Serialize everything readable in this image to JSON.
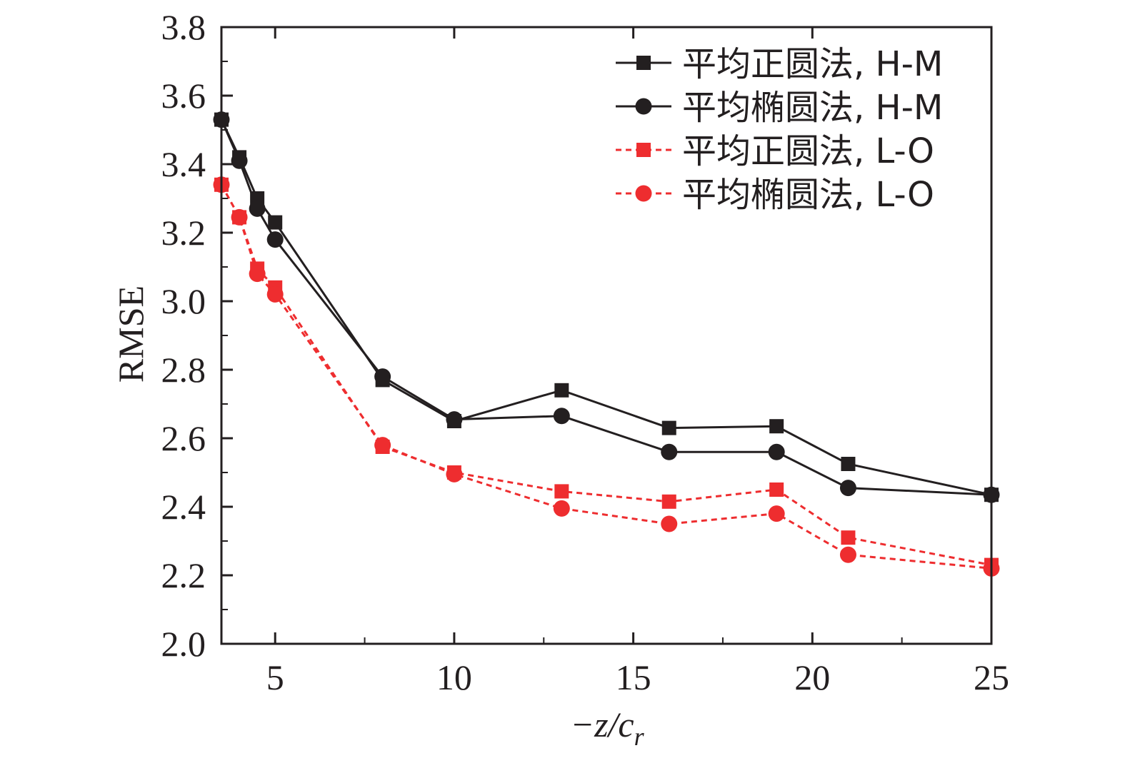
{
  "chart_data": {
    "type": "line",
    "title": "",
    "xlabel": "−z/c",
    "xlabel_subscript": "r",
    "ylabel": "RMSE",
    "xlim": [
      3.5,
      25
    ],
    "ylim": [
      2.0,
      3.8
    ],
    "xticks": [
      5,
      10,
      15,
      20,
      25
    ],
    "yticks": [
      2.0,
      2.2,
      2.4,
      2.6,
      2.8,
      3.0,
      3.2,
      3.4,
      3.6,
      3.8
    ],
    "x": [
      3.5,
      4,
      4.5,
      5,
      8,
      10,
      13,
      16,
      19,
      21,
      25
    ],
    "grid": false,
    "legend_position": "top-right",
    "series": [
      {
        "name": "平均正圆法, H-M",
        "color": "#231f20",
        "marker": "square",
        "line_style": "solid",
        "values": [
          3.53,
          3.42,
          3.3,
          3.23,
          2.77,
          2.65,
          2.74,
          2.63,
          2.635,
          2.525,
          2.435
        ]
      },
      {
        "name": "平均椭圆法, H-M",
        "color": "#231f20",
        "marker": "circle",
        "line_style": "solid",
        "values": [
          3.53,
          3.41,
          3.27,
          3.18,
          2.78,
          2.655,
          2.665,
          2.56,
          2.56,
          2.455,
          2.435
        ]
      },
      {
        "name": "平均正圆法, L-O",
        "color": "#ee2d2f",
        "marker": "square",
        "line_style": "dashed",
        "values": [
          3.34,
          3.245,
          3.095,
          3.04,
          2.575,
          2.5,
          2.445,
          2.415,
          2.45,
          2.31,
          2.23
        ]
      },
      {
        "name": "平均椭圆法, L-O",
        "color": "#ee2d2f",
        "marker": "circle",
        "line_style": "dashed",
        "values": [
          3.34,
          3.245,
          3.08,
          3.02,
          2.58,
          2.495,
          2.395,
          2.35,
          2.38,
          2.26,
          2.22
        ]
      }
    ]
  }
}
